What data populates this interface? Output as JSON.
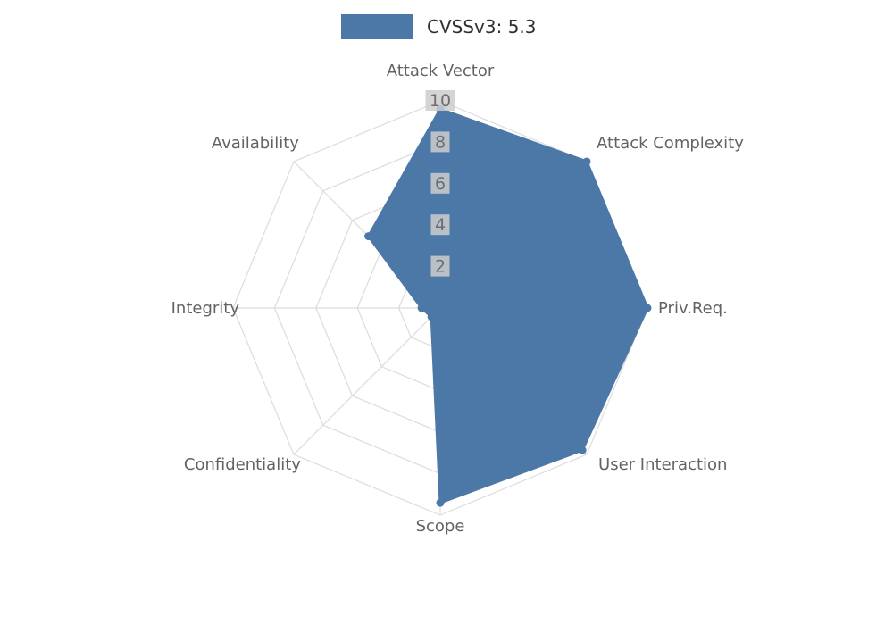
{
  "legend": {
    "label": "CVSSv3: 5.3",
    "color": "#4C78A8"
  },
  "chart_data": {
    "type": "radar",
    "title": "CVSSv3: 5.3",
    "categories": [
      "Attack Vector",
      "Attack Complexity",
      "Priv.Req.",
      "User Interaction",
      "Scope",
      "Confidentiality",
      "Integrity",
      "Availability"
    ],
    "series": [
      {
        "name": "CVSSv3: 5.3",
        "values": [
          9.6,
          10,
          10,
          9.7,
          9.4,
          0.6,
          0.9,
          4.9
        ],
        "color": "#4C78A8"
      }
    ],
    "ticks": [
      2,
      4,
      6,
      8,
      10
    ],
    "rmin": 0,
    "rmax": 10,
    "grid": true,
    "grid_shape": "web",
    "legend_position": "top-center"
  },
  "style": {
    "accent_color": "#4C78A8",
    "grid_color": "#dcdcdc",
    "axis_label_color": "#636363",
    "tick_label_color": "#6e6e6e",
    "tick_backdrop_color": "rgba(204,204,204,0.85)",
    "background_color": "#ffffff"
  }
}
